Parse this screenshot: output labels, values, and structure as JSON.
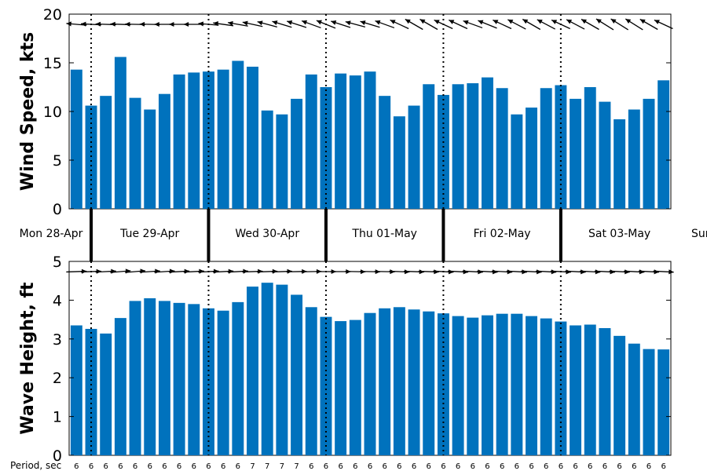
{
  "chart_data": [
    {
      "type": "bar",
      "name": "wind",
      "ylabel": "Wind Speed, kts",
      "ylim": [
        0,
        20
      ],
      "yticks": [
        0,
        5,
        10,
        15,
        20
      ],
      "color": "#0072BD",
      "values": [
        14.3,
        10.6,
        11.6,
        15.6,
        11.4,
        10.2,
        11.8,
        13.8,
        14.0,
        14.1,
        14.3,
        15.2,
        14.6,
        10.1,
        9.7,
        11.3,
        13.8,
        12.5,
        13.9,
        13.7,
        14.1,
        11.6,
        9.5,
        10.6,
        12.8,
        11.7,
        12.8,
        12.9,
        13.5,
        12.4,
        9.7,
        10.4,
        12.4,
        12.7,
        11.3,
        12.5,
        11.0,
        9.2,
        10.2,
        11.3,
        13.2
      ],
      "direction_deg": [
        175,
        177,
        178,
        178,
        179,
        179,
        180,
        180,
        180,
        175,
        172,
        170,
        168,
        165,
        163,
        162,
        160,
        158,
        162,
        165,
        163,
        160,
        155,
        150,
        150,
        155,
        155,
        160,
        158,
        155,
        152,
        150,
        152,
        155,
        152,
        150,
        148,
        148,
        148,
        150,
        155
      ]
    },
    {
      "type": "bar",
      "name": "waves",
      "ylabel": "Wave Height, ft",
      "ylim": [
        0,
        5
      ],
      "yticks": [
        0,
        1,
        2,
        3,
        4,
        5
      ],
      "color": "#0072BD",
      "values": [
        3.35,
        3.26,
        3.14,
        3.54,
        3.98,
        4.05,
        3.98,
        3.93,
        3.9,
        3.79,
        3.73,
        3.95,
        4.35,
        4.45,
        4.4,
        4.14,
        3.82,
        3.57,
        3.46,
        3.49,
        3.67,
        3.79,
        3.82,
        3.76,
        3.71,
        3.66,
        3.59,
        3.55,
        3.61,
        3.65,
        3.65,
        3.59,
        3.53,
        3.45,
        3.35,
        3.37,
        3.28,
        3.08,
        2.88,
        2.74,
        2.73
      ],
      "direction_deg": [
        2,
        2,
        3,
        5,
        5,
        4,
        4,
        3,
        3,
        3,
        3,
        3,
        2,
        2,
        2,
        1,
        1,
        0,
        0,
        -1,
        -1,
        -1,
        -2,
        -2,
        -2,
        -3,
        -3,
        -3,
        -3,
        -3,
        -3,
        -3,
        -3,
        -3,
        -3,
        -3,
        -3,
        -3,
        -3,
        -3,
        -3
      ],
      "periods_sec": [
        6,
        6,
        6,
        6,
        6,
        6,
        6,
        6,
        6,
        6,
        6,
        6,
        7,
        7,
        7,
        7,
        6,
        6,
        6,
        6,
        6,
        6,
        6,
        6,
        6,
        6,
        6,
        6,
        6,
        6,
        6,
        6,
        6,
        6,
        6,
        6,
        6,
        6,
        6,
        6,
        6
      ]
    }
  ],
  "days": [
    "Mon 28-Apr",
    "Tue 29-Apr",
    "Wed 30-Apr",
    "Thu 01-May",
    "Fri 02-May",
    "Sat 03-May",
    "Sun"
  ],
  "period_label": "Period, sec",
  "day_start_bar": [
    1.5,
    9.5,
    17.5,
    25.5,
    33.5
  ]
}
